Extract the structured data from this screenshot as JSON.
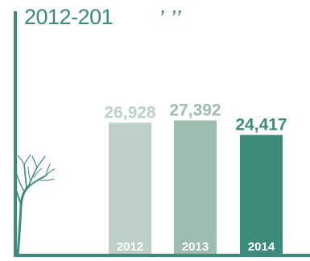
{
  "chart_data": {
    "type": "bar",
    "title": "2012-201",
    "title_marks": "’ ’’",
    "categories": [
      "2012",
      "2013",
      "2014"
    ],
    "values": [
      26928,
      27392,
      24417
    ],
    "value_labels": [
      "26,928",
      "27,392",
      "24,417"
    ],
    "bar_colors": [
      "#bdd0c8",
      "#9bbcaf",
      "#3d8b7a"
    ],
    "value_label_colors": [
      "#bdd0c8",
      "#9bbcaf",
      "#3d8b7a"
    ],
    "category_label_color": "#ffffff",
    "axis_color": "#3d8b7a",
    "icon": "tree-icon",
    "xlabel": "",
    "ylabel": "",
    "grid": false,
    "legend": "none"
  }
}
